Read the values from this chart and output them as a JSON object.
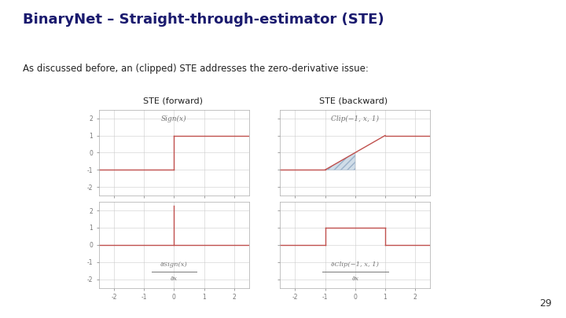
{
  "title": "BinaryNet – Straight-through-estimator (STE)",
  "subtitle": "As discussed before, an (clipped) STE addresses the zero-derivative issue:",
  "title_color": "#1a1a6e",
  "subtitle_color": "#222222",
  "label_forward": "STE (forward)",
  "label_backward": "STE (backward)",
  "line_color": "#c0504d",
  "hatch_facecolor": "#d0dde8",
  "hatch_edgecolor": "#9ab0c8",
  "grid_color": "#cccccc",
  "bg_color": "#ffffff",
  "tick_color": "#777777",
  "inner_label_color": "#777777",
  "page_number": "29",
  "top_left_label": "Sign(x)",
  "top_right_label": "Clip(−1, x, 1)",
  "bottom_left_label_num": "∂Sign(x)",
  "bottom_left_label_den": "∂x",
  "bottom_right_label_num": "∂Clip(−1, x, 1)",
  "bottom_right_label_den": "∂x"
}
